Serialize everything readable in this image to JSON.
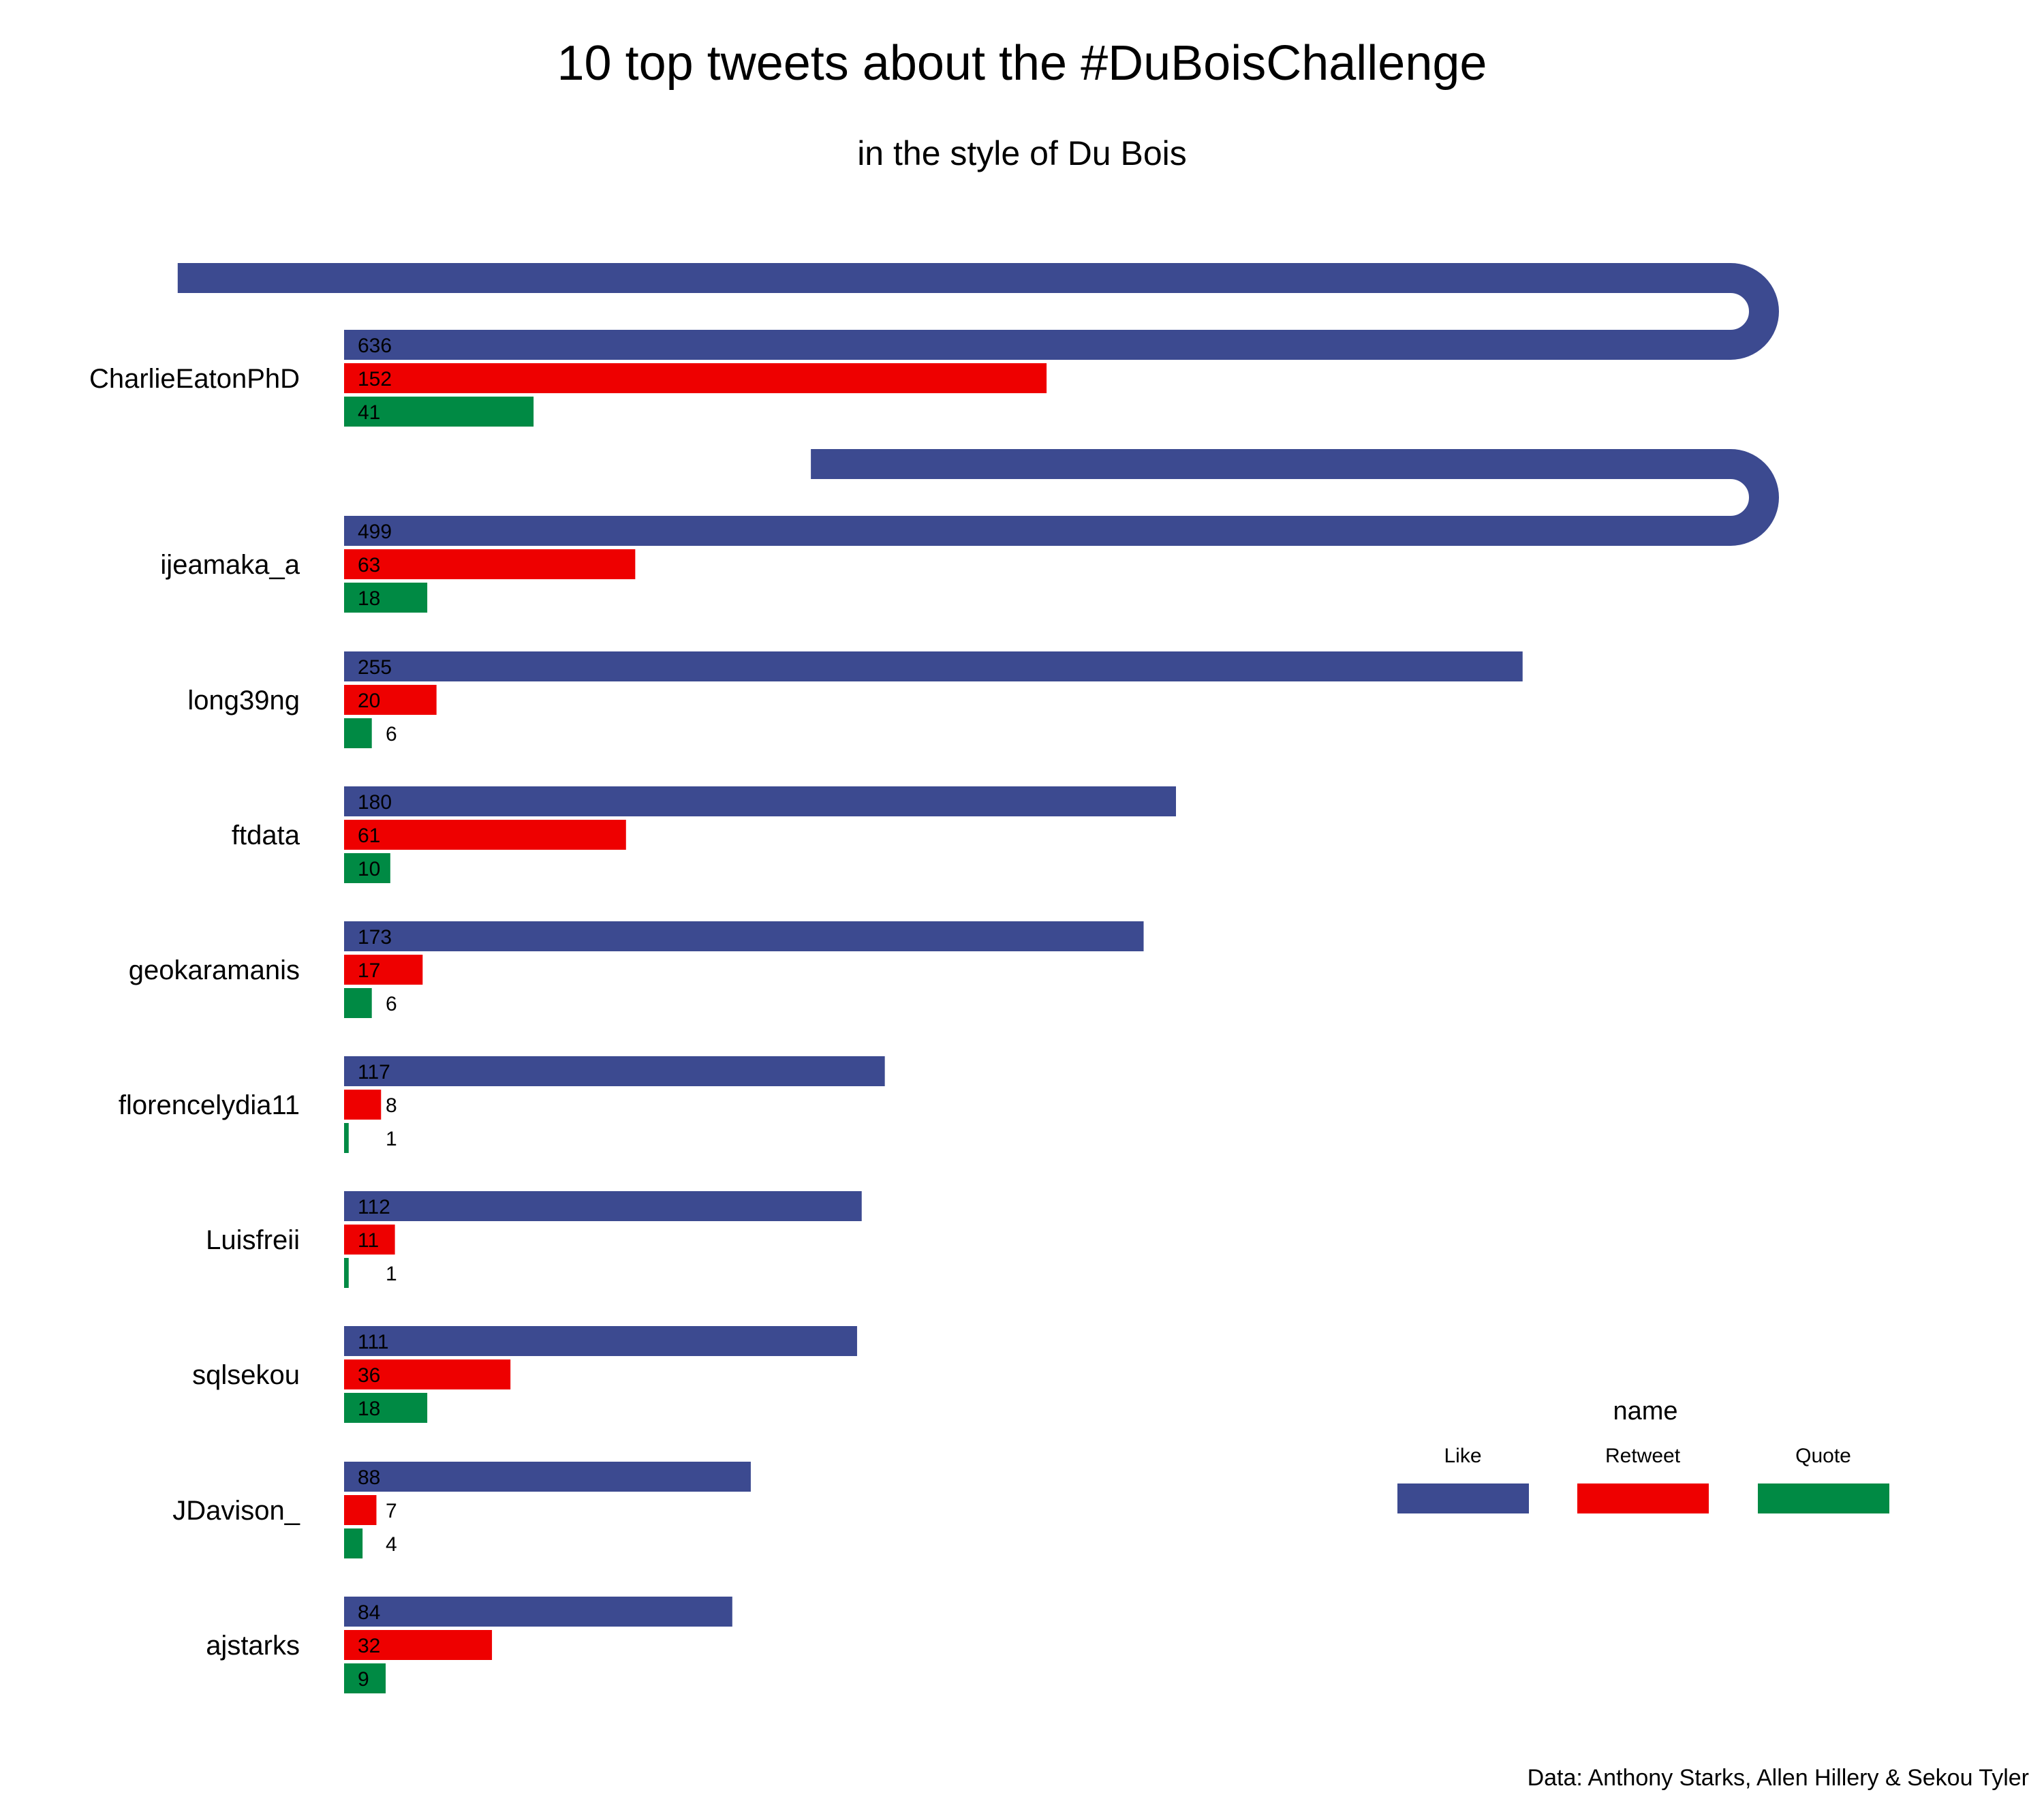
{
  "chart_data": {
    "type": "bar",
    "orientation": "horizontal",
    "title": "10 top tweets about the #DuBoisChallenge",
    "subtitle": "in the style of Du Bois",
    "caption": "Data: Anthony Starks, Allen Hillery & Sekou Tyler",
    "categories": [
      "CharlieEatonPhD",
      "ijeamaka_a",
      "long39ng",
      "ftdata",
      "geokaramanis",
      "florencelydia11",
      "Luisfreii",
      "sqlsekou",
      "JDavison_",
      "ajstarks"
    ],
    "series": [
      {
        "name": "Like",
        "color": "#3c4a90",
        "values": [
          636,
          499,
          255,
          180,
          173,
          117,
          112,
          111,
          88,
          84
        ]
      },
      {
        "name": "Retweet",
        "color": "#ee0000",
        "values": [
          152,
          63,
          20,
          61,
          17,
          8,
          11,
          36,
          7,
          32
        ]
      },
      {
        "name": "Quote",
        "color": "#008a44",
        "values": [
          41,
          18,
          6,
          10,
          6,
          1,
          1,
          18,
          4,
          9
        ]
      }
    ],
    "wrap_max": 300,
    "legend": {
      "title": "name",
      "position": "bottom-right"
    },
    "grid": false
  }
}
